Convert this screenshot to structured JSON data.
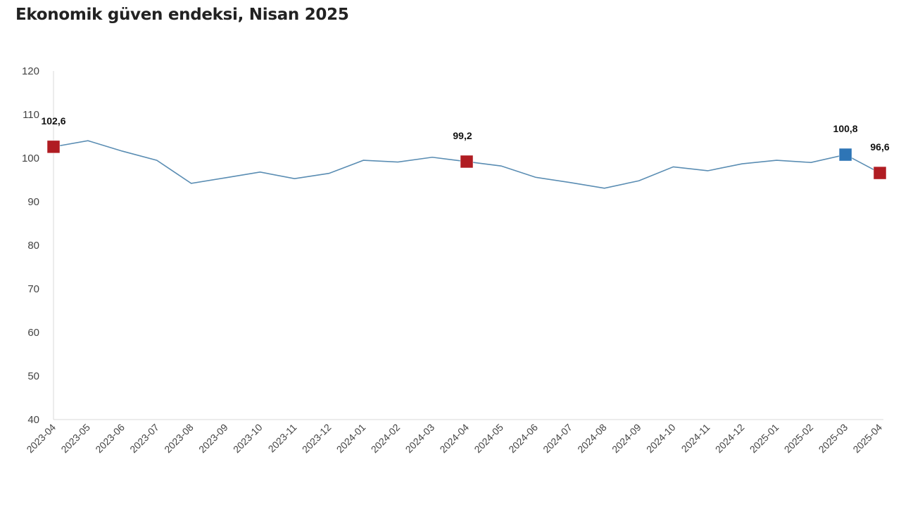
{
  "chart_data": {
    "type": "line",
    "title": "Ekonomik güven endeksi, Nisan 2025",
    "xlabel": "",
    "ylabel": "",
    "ylim": [
      40,
      120
    ],
    "yticks": [
      40,
      50,
      60,
      70,
      80,
      90,
      100,
      110,
      120
    ],
    "categories": [
      "2023-04",
      "2023-05",
      "2023-06",
      "2023-07",
      "2023-08",
      "2023-09",
      "2023-10",
      "2023-11",
      "2023-12",
      "2024-01",
      "2024-02",
      "2024-03",
      "2024-04",
      "2024-05",
      "2024-06",
      "2024-07",
      "2024-08",
      "2024-09",
      "2024-10",
      "2024-11",
      "2024-12",
      "2025-01",
      "2025-02",
      "2025-03",
      "2025-04"
    ],
    "series": [
      {
        "name": "Ekonomik güven endeksi",
        "color": "#5A8DB3",
        "values": [
          102.6,
          104.0,
          101.6,
          99.5,
          94.2,
          95.5,
          96.8,
          95.3,
          96.5,
          99.5,
          99.1,
          100.2,
          99.2,
          98.2,
          95.6,
          94.4,
          93.1,
          94.8,
          98.0,
          97.1,
          98.7,
          99.5,
          99.0,
          100.8,
          96.6
        ]
      }
    ],
    "highlights": [
      {
        "index": 0,
        "label": "102,6",
        "color": "#B01C22"
      },
      {
        "index": 12,
        "label": "99,2",
        "color": "#B01C22"
      },
      {
        "index": 23,
        "label": "100,8",
        "color": "#2E75B6"
      },
      {
        "index": 24,
        "label": "96,6",
        "color": "#B01C22"
      }
    ],
    "grid": false,
    "legend": "none"
  }
}
